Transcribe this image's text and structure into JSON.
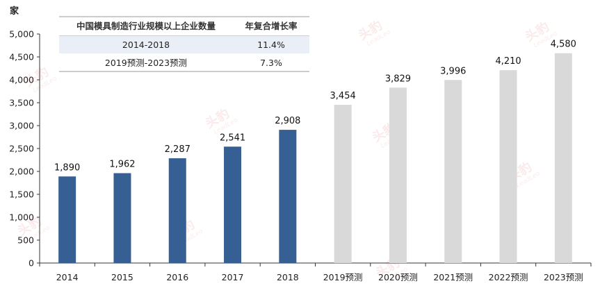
{
  "unit_label": "家",
  "table": {
    "headers": [
      "中国模具制造行业规模以上企业数量",
      "年复合增长率"
    ],
    "rows": [
      [
        "2014-2018",
        "11.4%"
      ],
      [
        "2019预测-2023预测",
        "7.3%"
      ]
    ]
  },
  "watermark": "头豹",
  "watermark_sub": "LeadLeo",
  "colors": {
    "actual_bar": "#365f93",
    "forecast_bar": "#d9d9d9",
    "table_band": "#e9eef7",
    "watermark": "#e57f7f"
  },
  "chart_data": {
    "type": "bar",
    "categories": [
      "2014",
      "2015",
      "2016",
      "2017",
      "2018",
      "2019预测",
      "2020预测",
      "2021预测",
      "2022预测",
      "2023预测"
    ],
    "values": [
      1890,
      1962,
      2287,
      2541,
      2908,
      3454,
      3829,
      3996,
      4210,
      4580
    ],
    "data_labels": [
      "1,890",
      "1,962",
      "2,287",
      "2,541",
      "2,908",
      "3,454",
      "3,829",
      "3,996",
      "4,210",
      "4,580"
    ],
    "bar_kind": [
      "actual",
      "actual",
      "actual",
      "actual",
      "actual",
      "forecast",
      "forecast",
      "forecast",
      "forecast",
      "forecast"
    ],
    "ylim": [
      0,
      5000
    ],
    "yticks": [
      0,
      500,
      1000,
      1500,
      2000,
      2500,
      3000,
      3500,
      4000,
      4500,
      5000
    ],
    "ytick_labels": [
      "0",
      "500",
      "1,000",
      "1,500",
      "2,000",
      "2,500",
      "3,000",
      "3,500",
      "4,000",
      "4,500",
      "5,000"
    ],
    "ylabel": "家",
    "xlabel": "",
    "title": "",
    "grid": false
  }
}
